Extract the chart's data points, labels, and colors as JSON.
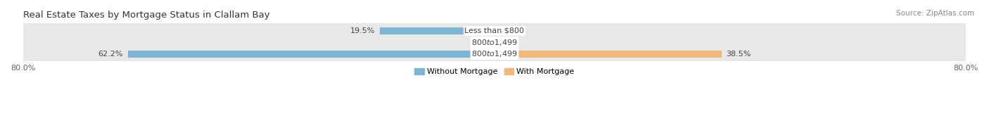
{
  "title": "Real Estate Taxes by Mortgage Status in Clallam Bay",
  "source": "Source: ZipAtlas.com",
  "rows": [
    {
      "label": "Less than $800",
      "without_mortgage": 19.5,
      "with_mortgage": 0.0
    },
    {
      "label": "$800 to $1,499",
      "without_mortgage": 0.0,
      "with_mortgage": 0.0
    },
    {
      "label": "$800 to $1,499",
      "without_mortgage": 62.2,
      "with_mortgage": 38.5
    }
  ],
  "xlim": [
    -80.0,
    80.0
  ],
  "color_without": "#7EB5D6",
  "color_with": "#F0B87A",
  "row_bg_color": "#E8E8E8",
  "legend_without": "Without Mortgage",
  "legend_with": "With Mortgage",
  "title_fontsize": 9.5,
  "label_fontsize": 8.0,
  "tick_fontsize": 8.0,
  "bar_height": 0.62
}
